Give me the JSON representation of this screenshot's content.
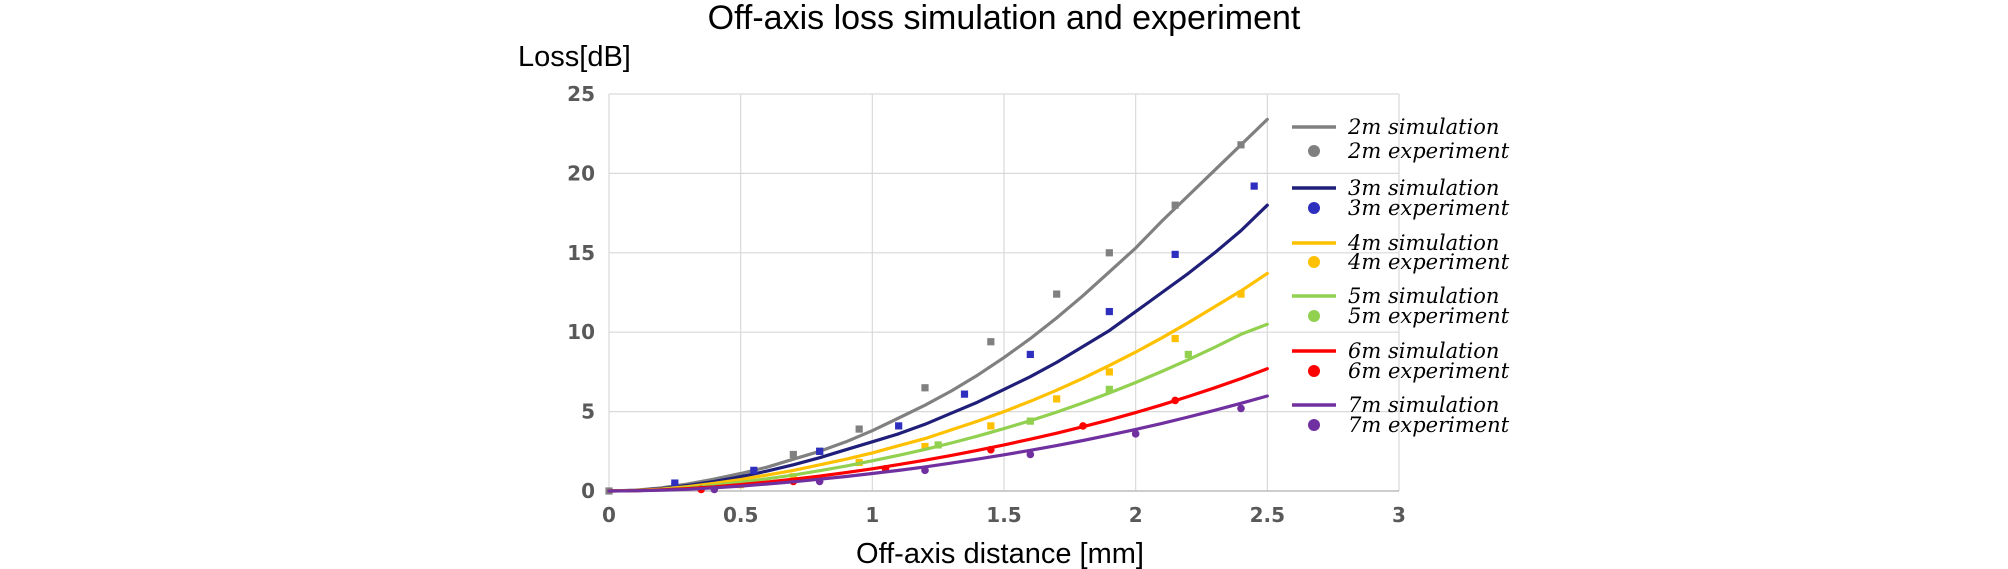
{
  "chart_data": {
    "type": "line",
    "title": "Off-axis loss simulation and experiment",
    "xlabel": "Off-axis distance [mm]",
    "ylabel": "Loss[dB]",
    "xlim": [
      0,
      3
    ],
    "ylim": [
      0,
      25
    ],
    "xticks": [
      "0",
      "0.5",
      "1",
      "1.5",
      "2",
      "2.5",
      "3"
    ],
    "yticks": [
      "0",
      "5",
      "10",
      "15",
      "20",
      "25"
    ],
    "grid": true,
    "legend_position": "right",
    "series": [
      {
        "name": "2m simulation",
        "kind": "line",
        "color": "#808080",
        "x": [
          0,
          0.1,
          0.2,
          0.3,
          0.4,
          0.5,
          0.6,
          0.7,
          0.8,
          0.9,
          1.0,
          1.1,
          1.2,
          1.3,
          1.4,
          1.5,
          1.6,
          1.7,
          1.8,
          1.9,
          2.0,
          2.1,
          2.2,
          2.3,
          2.4,
          2.5
        ],
        "y": [
          0,
          0.05,
          0.2,
          0.45,
          0.75,
          1.1,
          1.5,
          2.0,
          2.5,
          3.1,
          3.8,
          4.6,
          5.4,
          6.3,
          7.3,
          8.4,
          9.6,
          10.9,
          12.3,
          13.8,
          15.3,
          17.0,
          18.6,
          20.2,
          21.8,
          23.4
        ]
      },
      {
        "name": "2m experiment",
        "kind": "marker",
        "marker": "square",
        "color": "#808080",
        "x": [
          0,
          0.25,
          0.5,
          0.7,
          0.8,
          0.95,
          1.2,
          1.45,
          1.7,
          1.9,
          2.15,
          2.4
        ],
        "y": [
          0,
          0.3,
          0.9,
          2.3,
          2.5,
          3.9,
          6.5,
          9.4,
          12.4,
          15.0,
          18.0,
          21.8
        ]
      },
      {
        "name": "3m simulation",
        "kind": "line",
        "color": "#1f1f7a",
        "x": [
          0,
          0.1,
          0.2,
          0.3,
          0.4,
          0.5,
          0.6,
          0.7,
          0.8,
          0.9,
          1.0,
          1.1,
          1.2,
          1.3,
          1.4,
          1.5,
          1.6,
          1.7,
          1.8,
          1.9,
          2.0,
          2.1,
          2.2,
          2.3,
          2.4,
          2.5
        ],
        "y": [
          0,
          0.04,
          0.15,
          0.35,
          0.6,
          0.9,
          1.25,
          1.65,
          2.1,
          2.6,
          3.1,
          3.6,
          4.2,
          4.9,
          5.6,
          6.4,
          7.2,
          8.1,
          9.1,
          10.1,
          11.3,
          12.5,
          13.7,
          15.0,
          16.4,
          18.0
        ]
      },
      {
        "name": "3m experiment",
        "kind": "marker",
        "marker": "square",
        "color": "#2e2ebf",
        "x": [
          0.25,
          0.55,
          0.8,
          1.1,
          1.35,
          1.6,
          1.9,
          2.15,
          2.45
        ],
        "y": [
          0.5,
          1.3,
          2.5,
          4.1,
          6.1,
          8.6,
          11.3,
          14.9,
          19.2
        ]
      },
      {
        "name": "4m simulation",
        "kind": "line",
        "color": "#ffc000",
        "x": [
          0,
          0.1,
          0.2,
          0.3,
          0.4,
          0.5,
          0.6,
          0.7,
          0.8,
          0.9,
          1.0,
          1.1,
          1.2,
          1.3,
          1.4,
          1.5,
          1.6,
          1.7,
          1.8,
          1.9,
          2.0,
          2.1,
          2.2,
          2.3,
          2.4,
          2.5
        ],
        "y": [
          0,
          0.03,
          0.12,
          0.28,
          0.48,
          0.72,
          1.0,
          1.3,
          1.65,
          2.0,
          2.4,
          2.85,
          3.3,
          3.85,
          4.4,
          5.0,
          5.65,
          6.35,
          7.1,
          7.9,
          8.75,
          9.65,
          10.6,
          11.6,
          12.6,
          13.7
        ]
      },
      {
        "name": "4m experiment",
        "kind": "marker",
        "marker": "square",
        "color": "#ffc000",
        "x": [
          0.5,
          0.7,
          0.95,
          1.2,
          1.45,
          1.7,
          1.9,
          2.15,
          2.4
        ],
        "y": [
          0.4,
          0.9,
          1.8,
          2.8,
          4.1,
          5.8,
          7.5,
          9.6,
          12.4
        ]
      },
      {
        "name": "5m simulation",
        "kind": "line",
        "color": "#92d050",
        "x": [
          0,
          0.1,
          0.2,
          0.3,
          0.4,
          0.5,
          0.6,
          0.7,
          0.8,
          0.9,
          1.0,
          1.1,
          1.2,
          1.3,
          1.4,
          1.5,
          1.6,
          1.7,
          1.8,
          1.9,
          2.0,
          2.1,
          2.2,
          2.3,
          2.4,
          2.5
        ],
        "y": [
          0,
          0.02,
          0.09,
          0.2,
          0.36,
          0.55,
          0.77,
          1.0,
          1.28,
          1.57,
          1.9,
          2.25,
          2.62,
          3.02,
          3.46,
          3.93,
          4.43,
          4.97,
          5.55,
          6.17,
          6.83,
          7.53,
          8.27,
          9.05,
          9.87,
          10.5
        ]
      },
      {
        "name": "5m experiment",
        "kind": "marker",
        "marker": "square",
        "color": "#92d050",
        "x": [
          1.25,
          1.6,
          1.9,
          2.2
        ],
        "y": [
          2.9,
          4.4,
          6.4,
          8.6
        ]
      },
      {
        "name": "6m simulation",
        "kind": "line",
        "color": "#ff0000",
        "x": [
          0,
          0.1,
          0.2,
          0.3,
          0.4,
          0.5,
          0.6,
          0.7,
          0.8,
          0.9,
          1.0,
          1.1,
          1.2,
          1.3,
          1.4,
          1.5,
          1.6,
          1.7,
          1.8,
          1.9,
          2.0,
          2.1,
          2.2,
          2.3,
          2.4,
          2.5
        ],
        "y": [
          0,
          0.02,
          0.07,
          0.15,
          0.26,
          0.4,
          0.56,
          0.74,
          0.94,
          1.16,
          1.4,
          1.66,
          1.94,
          2.24,
          2.56,
          2.9,
          3.26,
          3.64,
          4.05,
          4.48,
          4.94,
          5.43,
          5.95,
          6.5,
          7.08,
          7.7
        ]
      },
      {
        "name": "6m experiment",
        "kind": "marker",
        "marker": "circle",
        "color": "#ff0000",
        "x": [
          0.35,
          0.7,
          1.05,
          1.45,
          1.8,
          2.15
        ],
        "y": [
          0.1,
          0.6,
          1.4,
          2.6,
          4.1,
          5.7
        ]
      },
      {
        "name": "7m simulation",
        "kind": "line",
        "color": "#7030a0",
        "x": [
          0,
          0.1,
          0.2,
          0.3,
          0.4,
          0.5,
          0.6,
          0.7,
          0.8,
          0.9,
          1.0,
          1.1,
          1.2,
          1.3,
          1.4,
          1.5,
          1.6,
          1.7,
          1.8,
          1.9,
          2.0,
          2.1,
          2.2,
          2.3,
          2.4,
          2.5
        ],
        "y": [
          0,
          0.01,
          0.05,
          0.11,
          0.2,
          0.31,
          0.44,
          0.58,
          0.74,
          0.91,
          1.1,
          1.3,
          1.52,
          1.76,
          2.01,
          2.28,
          2.56,
          2.86,
          3.18,
          3.52,
          3.88,
          4.26,
          4.66,
          5.08,
          5.52,
          5.98
        ]
      },
      {
        "name": "7m experiment",
        "kind": "marker",
        "marker": "circle",
        "color": "#7030a0",
        "x": [
          0.4,
          0.8,
          1.2,
          1.6,
          2.0,
          2.4
        ],
        "y": [
          0.1,
          0.6,
          1.3,
          2.3,
          3.6,
          5.2
        ]
      }
    ]
  }
}
